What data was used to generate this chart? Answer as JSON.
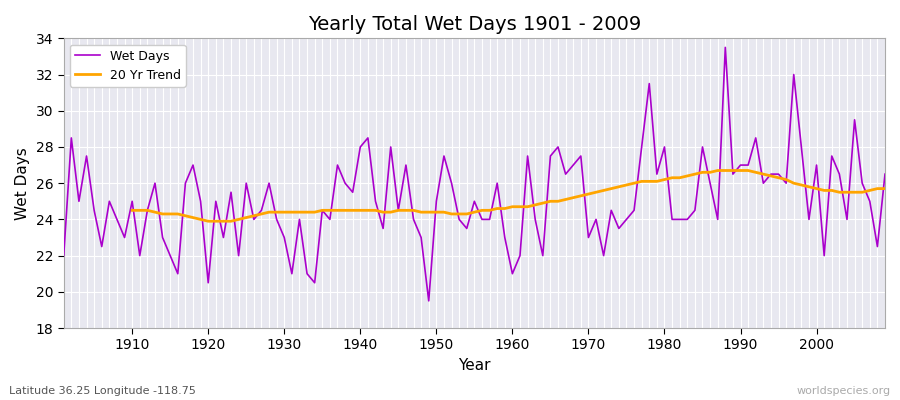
{
  "title": "Yearly Total Wet Days 1901 - 2009",
  "xlabel": "Year",
  "ylabel": "Wet Days",
  "bottom_left_label": "Latitude 36.25 Longitude -118.75",
  "bottom_right_label": "worldspecies.org",
  "ylim": [
    18,
    34
  ],
  "yticks": [
    18,
    20,
    22,
    24,
    26,
    28,
    30,
    32,
    34
  ],
  "bg_color": "#e8e8f0",
  "line_color": "#aa00cc",
  "trend_color": "#ffa500",
  "years": [
    1901,
    1902,
    1903,
    1904,
    1905,
    1906,
    1907,
    1908,
    1909,
    1910,
    1911,
    1912,
    1913,
    1914,
    1915,
    1916,
    1917,
    1918,
    1919,
    1920,
    1921,
    1922,
    1923,
    1924,
    1925,
    1926,
    1927,
    1928,
    1929,
    1930,
    1931,
    1932,
    1933,
    1934,
    1935,
    1936,
    1937,
    1938,
    1939,
    1940,
    1941,
    1942,
    1943,
    1944,
    1945,
    1946,
    1947,
    1948,
    1949,
    1950,
    1951,
    1952,
    1953,
    1954,
    1955,
    1956,
    1957,
    1958,
    1959,
    1960,
    1961,
    1962,
    1963,
    1964,
    1965,
    1966,
    1967,
    1968,
    1969,
    1970,
    1971,
    1972,
    1973,
    1974,
    1975,
    1976,
    1977,
    1978,
    1979,
    1980,
    1981,
    1982,
    1983,
    1984,
    1985,
    1986,
    1987,
    1988,
    1989,
    1990,
    1991,
    1992,
    1993,
    1994,
    1995,
    1996,
    1997,
    1998,
    1999,
    2000,
    2001,
    2002,
    2003,
    2004,
    2005,
    2006,
    2007,
    2008,
    2009
  ],
  "wet_days": [
    22,
    28.5,
    25,
    27.5,
    24.5,
    22.5,
    25,
    24,
    23,
    25,
    22,
    24.5,
    26,
    23,
    22,
    21,
    26,
    27,
    25,
    20.5,
    25,
    23,
    25.5,
    22,
    26,
    24,
    24.5,
    26,
    24,
    23,
    21,
    24,
    21,
    20.5,
    24.5,
    24,
    27,
    26,
    25.5,
    28,
    28.5,
    25,
    23.5,
    28,
    24.5,
    27,
    24,
    23,
    19.5,
    25,
    27.5,
    26,
    24,
    23.5,
    25,
    24,
    24,
    26,
    23,
    21,
    22,
    27.5,
    24,
    22,
    27.5,
    28,
    26.5,
    27,
    27.5,
    23,
    24,
    22,
    24.5,
    23.5,
    24,
    24.5,
    28,
    31.5,
    26.5,
    28,
    24,
    24,
    24,
    24.5,
    28,
    26,
    24,
    33.5,
    26.5,
    27,
    27,
    28.5,
    26,
    26.5,
    26.5,
    26,
    32,
    28,
    24,
    27,
    22,
    27.5,
    26.5,
    24,
    29.5,
    26,
    25,
    22.5,
    26.5
  ],
  "trend_years": [
    1910,
    1911,
    1912,
    1913,
    1914,
    1915,
    1916,
    1917,
    1918,
    1919,
    1920,
    1921,
    1922,
    1923,
    1924,
    1925,
    1926,
    1927,
    1928,
    1929,
    1930,
    1931,
    1932,
    1933,
    1934,
    1935,
    1936,
    1937,
    1938,
    1939,
    1940,
    1941,
    1942,
    1943,
    1944,
    1945,
    1946,
    1947,
    1948,
    1949,
    1950,
    1951,
    1952,
    1953,
    1954,
    1955,
    1956,
    1957,
    1958,
    1959,
    1960,
    1961,
    1962,
    1963,
    1964,
    1965,
    1966,
    1967,
    1968,
    1969,
    1970,
    1971,
    1972,
    1973,
    1974,
    1975,
    1976,
    1977,
    1978,
    1979,
    1980,
    1981,
    1982,
    1983,
    1984,
    1985,
    1986,
    1987,
    1988,
    1989,
    1990,
    1991,
    1992,
    1993,
    1994,
    1995,
    1996,
    1997,
    1998,
    1999,
    2000,
    2001,
    2002,
    2003,
    2004,
    2005,
    2006,
    2007,
    2008,
    2009
  ],
  "trend_vals": [
    24.5,
    24.5,
    24.5,
    24.4,
    24.3,
    24.3,
    24.3,
    24.2,
    24.1,
    24.0,
    23.9,
    23.9,
    23.9,
    23.9,
    24.0,
    24.1,
    24.2,
    24.3,
    24.4,
    24.4,
    24.4,
    24.4,
    24.4,
    24.4,
    24.4,
    24.5,
    24.5,
    24.5,
    24.5,
    24.5,
    24.5,
    24.5,
    24.5,
    24.4,
    24.4,
    24.5,
    24.5,
    24.5,
    24.4,
    24.4,
    24.4,
    24.4,
    24.3,
    24.3,
    24.3,
    24.4,
    24.5,
    24.5,
    24.6,
    24.6,
    24.7,
    24.7,
    24.7,
    24.8,
    24.9,
    25.0,
    25.0,
    25.1,
    25.2,
    25.3,
    25.4,
    25.5,
    25.6,
    25.7,
    25.8,
    25.9,
    26.0,
    26.1,
    26.1,
    26.1,
    26.2,
    26.3,
    26.3,
    26.4,
    26.5,
    26.6,
    26.6,
    26.7,
    26.7,
    26.7,
    26.7,
    26.7,
    26.6,
    26.5,
    26.4,
    26.3,
    26.2,
    26.0,
    25.9,
    25.8,
    25.7,
    25.6,
    25.6,
    25.5,
    25.5,
    25.5,
    25.5,
    25.6,
    25.7,
    25.7
  ]
}
